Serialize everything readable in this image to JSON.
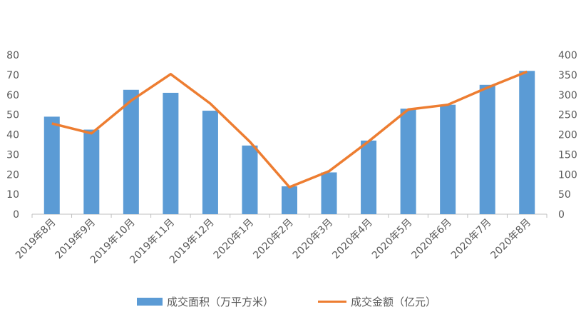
{
  "chart_data": {
    "type": "bar+line",
    "categories": [
      "2019年8月",
      "2019年9月",
      "2019年10月",
      "2019年11月",
      "2019年12月",
      "2020年1月",
      "2020年2月",
      "2020年3月",
      "2020年4月",
      "2020年5月",
      "2020年6月",
      "2020年7月",
      "2020年8月"
    ],
    "series": [
      {
        "name": "成交面积（万平方米）",
        "type": "bar",
        "axis": "left",
        "values": [
          49,
          42.5,
          62.5,
          61,
          52,
          34.5,
          14,
          21,
          37,
          53,
          55,
          65,
          72
        ]
      },
      {
        "name": "成交金额（亿元）",
        "type": "line",
        "axis": "right",
        "values": [
          228,
          203,
          285,
          352,
          278,
          182,
          68,
          108,
          183,
          263,
          275,
          318,
          358
        ]
      }
    ],
    "y_left": {
      "min": 0,
      "max": 80,
      "step": 10,
      "ticks": [
        "0",
        "10",
        "20",
        "30",
        "40",
        "50",
        "60",
        "70",
        "80"
      ]
    },
    "y_right": {
      "min": 0,
      "max": 400,
      "step": 50,
      "ticks": [
        "0",
        "50",
        "100",
        "150",
        "200",
        "250",
        "300",
        "350",
        "400"
      ]
    },
    "grid": false,
    "legend_position": "bottom",
    "colors": {
      "bar": "#5b9bd5",
      "line": "#ed7d31",
      "axis": "#bfbfbf",
      "text": "#595959"
    }
  },
  "legend": {
    "bar_label": "成交面积（万平方米）",
    "line_label": "成交金额（亿元）"
  }
}
